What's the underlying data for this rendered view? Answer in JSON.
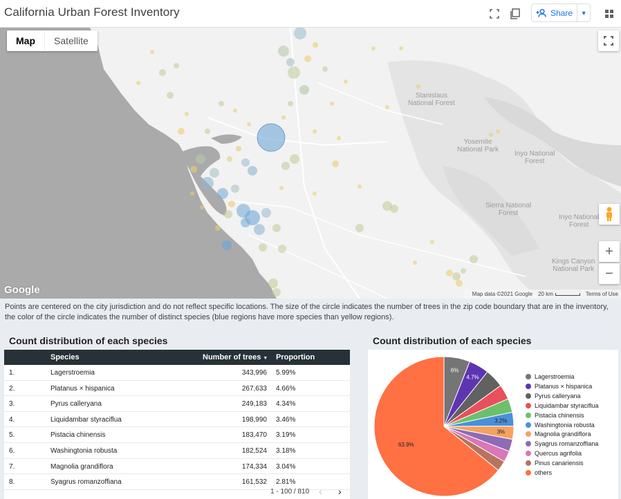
{
  "header": {
    "title": "California Urban Forest Inventory",
    "share_label": "Share"
  },
  "map": {
    "type_map": "Map",
    "type_satellite": "Satellite",
    "labels": {
      "stanislaus": "Stanislaus\nNational Forest",
      "yosemite": "Yosemite\nNational Park",
      "inyo1": "Inyo National\nForest",
      "sierra": "Sierra National\nForest",
      "inyo2": "Inyo National\nForest",
      "kings": "Kings Canyon\nNational Park"
    },
    "google": "Google",
    "attribution": "Map data ©2021 Google",
    "scale": "20 km",
    "terms": "Terms of Use",
    "zoom_in": "+",
    "zoom_out": "−"
  },
  "note": "Points are centered on the city jurisdiction and do not reflect specific locations. The size of the circle indicates the number of trees in the zip code boundary that are in the inventory, the color of the circle indicates the number of distinct species (blue regions have more species than yellow regions).",
  "table": {
    "title": "Count distribution of each species",
    "headers": {
      "species": "Species",
      "count": "Number of trees",
      "sort": "▼",
      "prop": "Proportion"
    },
    "rows": [
      {
        "idx": "1.",
        "species": "Lagerstroemia",
        "count": "343,996",
        "prop": "5.99%"
      },
      {
        "idx": "2.",
        "species": "Platanus × hispanica",
        "count": "267,633",
        "prop": "4.66%"
      },
      {
        "idx": "3.",
        "species": "Pyrus calleryana",
        "count": "249,183",
        "prop": "4.34%"
      },
      {
        "idx": "4.",
        "species": "Liquidambar styraciflua",
        "count": "198,990",
        "prop": "3.46%"
      },
      {
        "idx": "5.",
        "species": "Pistacia chinensis",
        "count": "183,470",
        "prop": "3.19%"
      },
      {
        "idx": "6.",
        "species": "Washingtonia robusta",
        "count": "182,524",
        "prop": "3.18%"
      },
      {
        "idx": "7.",
        "species": "Magnolia grandiflora",
        "count": "174,334",
        "prop": "3.04%"
      },
      {
        "idx": "8.",
        "species": "Syagrus romanzoffiana",
        "count": "161,532",
        "prop": "2.81%"
      }
    ],
    "pagination": "1 - 100 / 810"
  },
  "chart_data": {
    "type": "pie",
    "title": "Count distribution of each species",
    "categories": [
      "Lagerstroemia",
      "Platanus × hispanica",
      "Pyrus calleryana",
      "Liquidambar styraciflua",
      "Pistacia chinensis",
      "Washingtonia robusta",
      "Magnolia grandiflora",
      "Syagrus romanzoffiana",
      "Quercus agrifolia",
      "Pinus canariensis",
      "others"
    ],
    "values": [
      5.99,
      4.66,
      4.34,
      3.46,
      3.19,
      3.18,
      3.04,
      2.81,
      2.6,
      2.4,
      63.9
    ],
    "colors": [
      "#757575",
      "#5e35b1",
      "#616161",
      "#e8505b",
      "#6cc06a",
      "#4a90d9",
      "#f4a261",
      "#8e6bb5",
      "#d977b8",
      "#b5745e",
      "#ff7043"
    ],
    "data_labels": [
      "6%",
      "4.7%",
      "",
      "",
      "",
      "3.2%",
      "3%",
      "",
      "",
      "",
      "63.9%"
    ],
    "legend": "right"
  }
}
